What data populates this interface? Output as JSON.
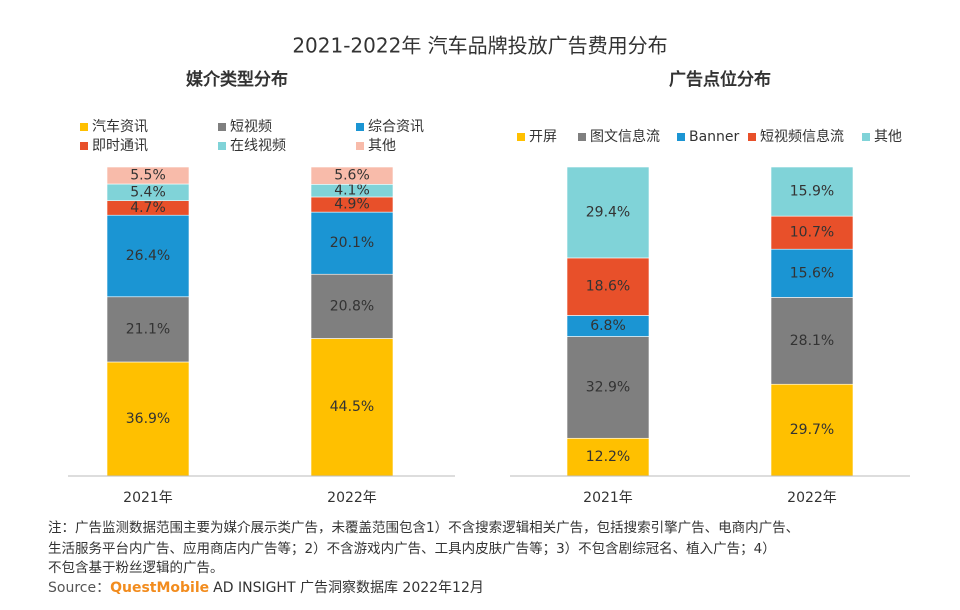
{
  "title": "2021-2022年 汽车品牌投放广告费用分布",
  "chart_data": [
    {
      "type": "stacked_bar",
      "title": "媒介类型分布",
      "categories": [
        "2021年",
        "2022年"
      ],
      "series": [
        {
          "name": "汽车资讯",
          "color": "#FFC000",
          "values": [
            36.9,
            44.5
          ],
          "value_labels": [
            "36.9%",
            "44.5%"
          ]
        },
        {
          "name": "短视频",
          "color": "#7F7F7F",
          "values": [
            21.1,
            20.8
          ],
          "value_labels": [
            "21.1%",
            "20.8%"
          ]
        },
        {
          "name": "综合资讯",
          "color": "#1B95D3",
          "values": [
            26.4,
            20.1
          ],
          "value_labels": [
            "26.4%",
            "20.1%"
          ]
        },
        {
          "name": "即时通讯",
          "color": "#E8502A",
          "values": [
            4.7,
            4.9
          ],
          "value_labels": [
            "4.7%",
            "4.9%"
          ]
        },
        {
          "name": "在线视频",
          "color": "#80D3D8",
          "values": [
            5.4,
            4.1
          ],
          "value_labels": [
            "5.4%",
            "4.1%"
          ]
        },
        {
          "name": "其他",
          "color": "#F8BBAA",
          "values": [
            5.5,
            5.6
          ],
          "value_labels": [
            "5.5%",
            "5.6%"
          ]
        }
      ]
    },
    {
      "type": "stacked_bar",
      "title": "广告点位分布",
      "categories": [
        "2021年",
        "2022年"
      ],
      "series": [
        {
          "name": "开屏",
          "color": "#FFC000",
          "values": [
            12.2,
            29.7
          ],
          "value_labels": [
            "12.2%",
            "29.7%"
          ]
        },
        {
          "name": "图文信息流",
          "color": "#7F7F7F",
          "values": [
            32.9,
            28.1
          ],
          "value_labels": [
            "32.9%",
            "28.1%"
          ]
        },
        {
          "name": "Banner",
          "color": "#1B95D3",
          "values": [
            6.8,
            15.6
          ],
          "value_labels": [
            "6.8%",
            "15.6%"
          ]
        },
        {
          "name": "短视频信息流",
          "color": "#E8502A",
          "values": [
            18.6,
            10.7
          ],
          "value_labels": [
            "18.6%",
            "10.7%"
          ]
        },
        {
          "name": "其他",
          "color": "#80D3D8",
          "values": [
            29.4,
            15.9
          ],
          "value_labels": [
            "29.4%",
            "15.9%"
          ]
        }
      ]
    }
  ],
  "note": [
    "注：广告监测数据范围主要为媒介展示类广告，未覆盖范围包含1）不含搜索逻辑相关广告，包括搜索引擎广告、电商内广告、",
    "生活服务平台内广告、应用商店内广告等；2）不含游戏内广告、工具内皮肤广告等；3）不包含剧综冠名、植入广告；4）",
    "不包含基于粉丝逻辑的广告。"
  ],
  "source": {
    "label": "Source：",
    "brand": "QuestMobile",
    "text": "AD INSIGHT 广告洞察数据库 2022年12月"
  }
}
